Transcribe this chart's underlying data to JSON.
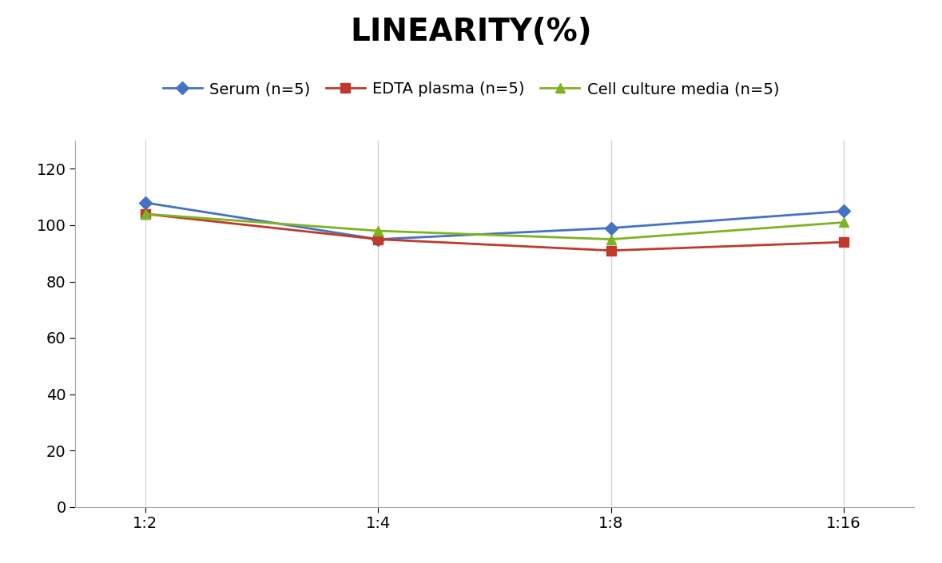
{
  "title": "LINEARITY(%)",
  "title_fontsize": 28,
  "title_fontweight": "bold",
  "x_labels": [
    "1:2",
    "1:4",
    "1:8",
    "1:16"
  ],
  "x_positions": [
    0,
    1,
    2,
    3
  ],
  "series": [
    {
      "label": "Serum (n=5)",
      "values": [
        108,
        95,
        99,
        105
      ],
      "color": "#4472C4",
      "marker": "D",
      "marker_size": 8,
      "linewidth": 2
    },
    {
      "label": "EDTA plasma (n=5)",
      "values": [
        104,
        95,
        91,
        94
      ],
      "color": "#C0392B",
      "marker": "s",
      "marker_size": 8,
      "linewidth": 2
    },
    {
      "label": "Cell culture media (n=5)",
      "values": [
        104,
        98,
        95,
        101
      ],
      "color": "#7DB320",
      "marker": "^",
      "marker_size": 8,
      "linewidth": 2
    }
  ],
  "ylim": [
    0,
    130
  ],
  "yticks": [
    0,
    20,
    40,
    60,
    80,
    100,
    120
  ],
  "grid_color": "#D3D3D3",
  "grid_linewidth": 1,
  "background_color": "#FFFFFF",
  "legend_fontsize": 14,
  "tick_fontsize": 14,
  "axis_linecolor": "#AAAAAA"
}
